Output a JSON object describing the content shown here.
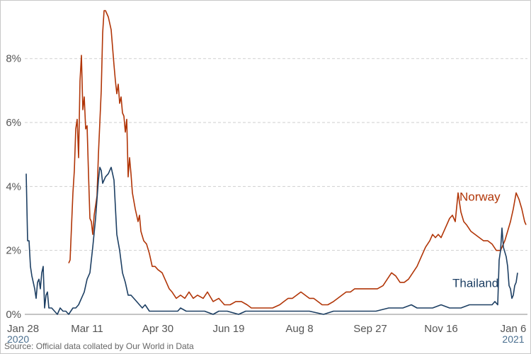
{
  "chart_data": {
    "type": "line",
    "x_unit": "date",
    "y_unit": "%",
    "ylim": [
      0,
      9.5
    ],
    "xlim": [
      "2020-01-28",
      "2021-01-16"
    ],
    "y_ticks": [
      {
        "value": 0,
        "label": "0%"
      },
      {
        "value": 2,
        "label": "2%"
      },
      {
        "value": 4,
        "label": "4%"
      },
      {
        "value": 6,
        "label": "6%"
      },
      {
        "value": 8,
        "label": "8%"
      }
    ],
    "x_ticks": [
      {
        "date": "2020-01-28",
        "label": "Jan 28",
        "year": "2020"
      },
      {
        "date": "2020-03-11",
        "label": "Mar 11",
        "year": ""
      },
      {
        "date": "2020-04-30",
        "label": "Apr 30",
        "year": ""
      },
      {
        "date": "2020-06-19",
        "label": "Jun 19",
        "year": ""
      },
      {
        "date": "2020-08-08",
        "label": "Aug 8",
        "year": ""
      },
      {
        "date": "2020-09-27",
        "label": "Sep 27",
        "year": ""
      },
      {
        "date": "2020-11-16",
        "label": "Nov 16",
        "year": ""
      },
      {
        "date": "2021-01-06",
        "label": "Jan 6",
        "year": "2021"
      }
    ],
    "grid": "horizontal dashed",
    "legend": "inline labels near line ends",
    "series": [
      {
        "name": "Norway",
        "color": "#b13507",
        "points": [
          [
            "2020-02-27",
            1.6
          ],
          [
            "2020-02-28",
            1.7
          ],
          [
            "2020-03-01",
            3.8
          ],
          [
            "2020-03-02",
            4.5
          ],
          [
            "2020-03-03",
            5.8
          ],
          [
            "2020-03-04",
            6.1
          ],
          [
            "2020-03-05",
            4.9
          ],
          [
            "2020-03-06",
            7.3
          ],
          [
            "2020-03-07",
            8.1
          ],
          [
            "2020-03-08",
            6.4
          ],
          [
            "2020-03-09",
            6.8
          ],
          [
            "2020-03-10",
            5.8
          ],
          [
            "2020-03-11",
            5.9
          ],
          [
            "2020-03-12",
            4.4
          ],
          [
            "2020-03-13",
            3.0
          ],
          [
            "2020-03-14",
            2.9
          ],
          [
            "2020-03-15",
            2.5
          ],
          [
            "2020-03-16",
            3.1
          ],
          [
            "2020-03-18",
            3.7
          ],
          [
            "2020-03-19",
            5.0
          ],
          [
            "2020-03-21",
            7.0
          ],
          [
            "2020-03-22",
            8.8
          ],
          [
            "2020-03-23",
            9.5
          ],
          [
            "2020-03-24",
            9.5
          ],
          [
            "2020-03-26",
            9.3
          ],
          [
            "2020-03-28",
            8.9
          ],
          [
            "2020-03-30",
            7.8
          ],
          [
            "2020-03-31",
            7.3
          ],
          [
            "2020-04-01",
            6.9
          ],
          [
            "2020-04-02",
            7.2
          ],
          [
            "2020-04-03",
            6.6
          ],
          [
            "2020-04-04",
            6.8
          ],
          [
            "2020-04-05",
            6.3
          ],
          [
            "2020-04-06",
            6.2
          ],
          [
            "2020-04-07",
            5.7
          ],
          [
            "2020-04-08",
            6.1
          ],
          [
            "2020-04-09",
            4.3
          ],
          [
            "2020-04-10",
            4.9
          ],
          [
            "2020-04-11",
            4.4
          ],
          [
            "2020-04-12",
            3.8
          ],
          [
            "2020-04-14",
            3.3
          ],
          [
            "2020-04-16",
            2.9
          ],
          [
            "2020-04-17",
            3.1
          ],
          [
            "2020-04-18",
            2.6
          ],
          [
            "2020-04-20",
            2.3
          ],
          [
            "2020-04-22",
            2.2
          ],
          [
            "2020-04-24",
            1.9
          ],
          [
            "2020-04-26",
            1.5
          ],
          [
            "2020-04-28",
            1.5
          ],
          [
            "2020-04-30",
            1.4
          ],
          [
            "2020-05-03",
            1.3
          ],
          [
            "2020-05-06",
            1.0
          ],
          [
            "2020-05-08",
            0.8
          ],
          [
            "2020-05-10",
            0.7
          ],
          [
            "2020-05-13",
            0.5
          ],
          [
            "2020-05-16",
            0.6
          ],
          [
            "2020-05-19",
            0.5
          ],
          [
            "2020-05-22",
            0.7
          ],
          [
            "2020-05-25",
            0.5
          ],
          [
            "2020-05-28",
            0.6
          ],
          [
            "2020-06-01",
            0.5
          ],
          [
            "2020-06-04",
            0.7
          ],
          [
            "2020-06-08",
            0.4
          ],
          [
            "2020-06-12",
            0.5
          ],
          [
            "2020-06-16",
            0.3
          ],
          [
            "2020-06-20",
            0.3
          ],
          [
            "2020-06-24",
            0.4
          ],
          [
            "2020-06-28",
            0.4
          ],
          [
            "2020-07-02",
            0.3
          ],
          [
            "2020-07-05",
            0.2
          ],
          [
            "2020-07-10",
            0.2
          ],
          [
            "2020-07-15",
            0.2
          ],
          [
            "2020-07-20",
            0.2
          ],
          [
            "2020-07-25",
            0.3
          ],
          [
            "2020-07-28",
            0.4
          ],
          [
            "2020-07-31",
            0.5
          ],
          [
            "2020-08-03",
            0.5
          ],
          [
            "2020-08-06",
            0.6
          ],
          [
            "2020-08-09",
            0.7
          ],
          [
            "2020-08-12",
            0.6
          ],
          [
            "2020-08-15",
            0.5
          ],
          [
            "2020-08-18",
            0.5
          ],
          [
            "2020-08-21",
            0.4
          ],
          [
            "2020-08-24",
            0.3
          ],
          [
            "2020-08-28",
            0.3
          ],
          [
            "2020-09-01",
            0.4
          ],
          [
            "2020-09-04",
            0.5
          ],
          [
            "2020-09-07",
            0.6
          ],
          [
            "2020-09-10",
            0.7
          ],
          [
            "2020-09-13",
            0.7
          ],
          [
            "2020-09-16",
            0.8
          ],
          [
            "2020-09-20",
            0.8
          ],
          [
            "2020-09-24",
            0.8
          ],
          [
            "2020-09-28",
            0.8
          ],
          [
            "2020-10-02",
            0.8
          ],
          [
            "2020-10-06",
            0.9
          ],
          [
            "2020-10-09",
            1.1
          ],
          [
            "2020-10-12",
            1.3
          ],
          [
            "2020-10-15",
            1.2
          ],
          [
            "2020-10-18",
            1.0
          ],
          [
            "2020-10-21",
            1.0
          ],
          [
            "2020-10-24",
            1.1
          ],
          [
            "2020-10-27",
            1.3
          ],
          [
            "2020-10-30",
            1.5
          ],
          [
            "2020-11-02",
            1.8
          ],
          [
            "2020-11-05",
            2.1
          ],
          [
            "2020-11-08",
            2.3
          ],
          [
            "2020-11-10",
            2.5
          ],
          [
            "2020-11-12",
            2.4
          ],
          [
            "2020-11-14",
            2.5
          ],
          [
            "2020-11-16",
            2.4
          ],
          [
            "2020-11-18",
            2.6
          ],
          [
            "2020-11-20",
            2.8
          ],
          [
            "2020-11-22",
            3.0
          ],
          [
            "2020-11-24",
            3.1
          ],
          [
            "2020-11-26",
            2.9
          ],
          [
            "2020-11-28",
            3.8
          ],
          [
            "2020-11-30",
            3.2
          ],
          [
            "2020-12-02",
            2.9
          ],
          [
            "2020-12-04",
            2.8
          ],
          [
            "2020-12-07",
            2.6
          ],
          [
            "2020-12-10",
            2.5
          ],
          [
            "2020-12-13",
            2.4
          ],
          [
            "2020-12-16",
            2.3
          ],
          [
            "2020-12-19",
            2.3
          ],
          [
            "2020-12-22",
            2.2
          ],
          [
            "2020-12-25",
            2.0
          ],
          [
            "2020-12-28",
            2.0
          ],
          [
            "2020-12-31",
            2.3
          ],
          [
            "2021-01-02",
            2.6
          ],
          [
            "2021-01-04",
            2.9
          ],
          [
            "2021-01-06",
            3.3
          ],
          [
            "2021-01-08",
            3.8
          ],
          [
            "2021-01-10",
            3.6
          ],
          [
            "2021-01-12",
            3.3
          ],
          [
            "2021-01-14",
            2.9
          ],
          [
            "2021-01-15",
            2.8
          ]
        ]
      },
      {
        "name": "Thailand",
        "color": "#1d3f63",
        "points": [
          [
            "2020-01-28",
            4.4
          ],
          [
            "2020-01-29",
            2.3
          ],
          [
            "2020-01-30",
            2.3
          ],
          [
            "2020-01-31",
            1.5
          ],
          [
            "2020-02-01",
            1.2
          ],
          [
            "2020-02-02",
            1.0
          ],
          [
            "2020-02-03",
            0.8
          ],
          [
            "2020-02-04",
            0.5
          ],
          [
            "2020-02-05",
            1.0
          ],
          [
            "2020-02-06",
            1.1
          ],
          [
            "2020-02-07",
            0.8
          ],
          [
            "2020-02-08",
            1.3
          ],
          [
            "2020-02-09",
            1.5
          ],
          [
            "2020-02-10",
            0.2
          ],
          [
            "2020-02-11",
            0.6
          ],
          [
            "2020-02-12",
            0.7
          ],
          [
            "2020-02-13",
            0.2
          ],
          [
            "2020-02-15",
            0.2
          ],
          [
            "2020-02-17",
            0.1
          ],
          [
            "2020-02-19",
            0.0
          ],
          [
            "2020-02-21",
            0.2
          ],
          [
            "2020-02-23",
            0.1
          ],
          [
            "2020-02-25",
            0.1
          ],
          [
            "2020-02-27",
            0.0
          ],
          [
            "2020-03-01",
            0.2
          ],
          [
            "2020-03-03",
            0.2
          ],
          [
            "2020-03-05",
            0.3
          ],
          [
            "2020-03-07",
            0.5
          ],
          [
            "2020-03-09",
            0.7
          ],
          [
            "2020-03-11",
            1.1
          ],
          [
            "2020-03-13",
            1.3
          ],
          [
            "2020-03-15",
            2.1
          ],
          [
            "2020-03-17",
            3.0
          ],
          [
            "2020-03-19",
            4.2
          ],
          [
            "2020-03-20",
            4.6
          ],
          [
            "2020-03-21",
            4.5
          ],
          [
            "2020-03-22",
            4.1
          ],
          [
            "2020-03-24",
            4.3
          ],
          [
            "2020-03-26",
            4.4
          ],
          [
            "2020-03-28",
            4.6
          ],
          [
            "2020-03-30",
            4.2
          ],
          [
            "2020-04-01",
            2.5
          ],
          [
            "2020-04-03",
            2.0
          ],
          [
            "2020-04-05",
            1.3
          ],
          [
            "2020-04-07",
            1.0
          ],
          [
            "2020-04-09",
            0.6
          ],
          [
            "2020-04-11",
            0.6
          ],
          [
            "2020-04-13",
            0.5
          ],
          [
            "2020-04-15",
            0.4
          ],
          [
            "2020-04-17",
            0.3
          ],
          [
            "2020-04-19",
            0.2
          ],
          [
            "2020-04-21",
            0.3
          ],
          [
            "2020-04-24",
            0.1
          ],
          [
            "2020-04-30",
            0.1
          ],
          [
            "2020-05-08",
            0.1
          ],
          [
            "2020-05-14",
            0.1
          ],
          [
            "2020-05-16",
            0.2
          ],
          [
            "2020-05-20",
            0.1
          ],
          [
            "2020-05-24",
            0.1
          ],
          [
            "2020-05-28",
            0.1
          ],
          [
            "2020-06-02",
            0.1
          ],
          [
            "2020-06-08",
            0.0
          ],
          [
            "2020-06-12",
            0.1
          ],
          [
            "2020-06-18",
            0.1
          ],
          [
            "2020-06-26",
            0.0
          ],
          [
            "2020-07-01",
            0.1
          ],
          [
            "2020-07-15",
            0.1
          ],
          [
            "2020-08-01",
            0.1
          ],
          [
            "2020-08-15",
            0.1
          ],
          [
            "2020-08-25",
            0.0
          ],
          [
            "2020-09-01",
            0.1
          ],
          [
            "2020-09-15",
            0.1
          ],
          [
            "2020-10-01",
            0.1
          ],
          [
            "2020-10-10",
            0.2
          ],
          [
            "2020-10-20",
            0.2
          ],
          [
            "2020-10-26",
            0.3
          ],
          [
            "2020-10-30",
            0.2
          ],
          [
            "2020-11-05",
            0.2
          ],
          [
            "2020-11-10",
            0.2
          ],
          [
            "2020-11-16",
            0.3
          ],
          [
            "2020-11-22",
            0.2
          ],
          [
            "2020-11-30",
            0.2
          ],
          [
            "2020-12-06",
            0.3
          ],
          [
            "2020-12-12",
            0.3
          ],
          [
            "2020-12-18",
            0.3
          ],
          [
            "2020-12-22",
            0.3
          ],
          [
            "2020-12-24",
            0.4
          ],
          [
            "2020-12-26",
            0.3
          ],
          [
            "2020-12-27",
            1.7
          ],
          [
            "2020-12-28",
            2.0
          ],
          [
            "2020-12-29",
            2.7
          ],
          [
            "2020-12-30",
            2.1
          ],
          [
            "2021-01-01",
            1.8
          ],
          [
            "2021-01-02",
            1.5
          ],
          [
            "2021-01-03",
            0.9
          ],
          [
            "2021-01-04",
            0.8
          ],
          [
            "2021-01-05",
            0.5
          ],
          [
            "2021-01-06",
            0.6
          ],
          [
            "2021-01-07",
            0.9
          ],
          [
            "2021-01-08",
            1.0
          ],
          [
            "2021-01-09",
            1.3
          ]
        ]
      }
    ]
  },
  "source_text": "Source: Official data collated by Our World in Data"
}
